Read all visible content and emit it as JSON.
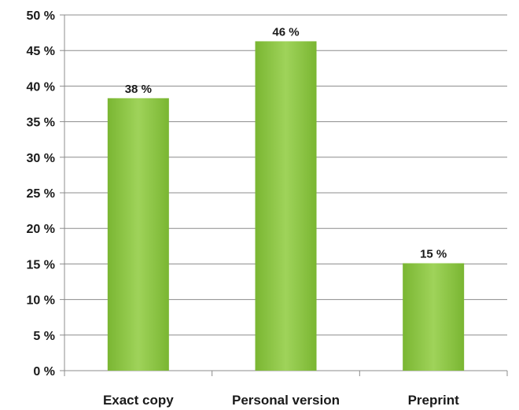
{
  "chart_data": {
    "type": "bar",
    "categories": [
      "Exact copy",
      "Personal version",
      "Preprint"
    ],
    "values": [
      38.3,
      46.3,
      15.1
    ],
    "data_labels": [
      "38 %",
      "46 %",
      "15 %"
    ],
    "title": "",
    "xlabel": "",
    "ylabel": "",
    "ylim": [
      0,
      50
    ],
    "y_ticks": [
      0,
      5,
      10,
      15,
      20,
      25,
      30,
      35,
      40,
      45,
      50
    ],
    "y_tick_labels": [
      "0 %",
      "5 %",
      "10 %",
      "15 %",
      "20 %",
      "25 %",
      "30 %",
      "35 %",
      "40 %",
      "45 %",
      "50 %"
    ],
    "grid": true,
    "legend": "none",
    "colors": {
      "bar": "#8cc63f",
      "bar_light": "#9fd35a",
      "bar_dark": "#7ab632",
      "grid": "#8c8c8c",
      "axis": "#8c8c8c",
      "text": "#1a1a1a"
    }
  }
}
